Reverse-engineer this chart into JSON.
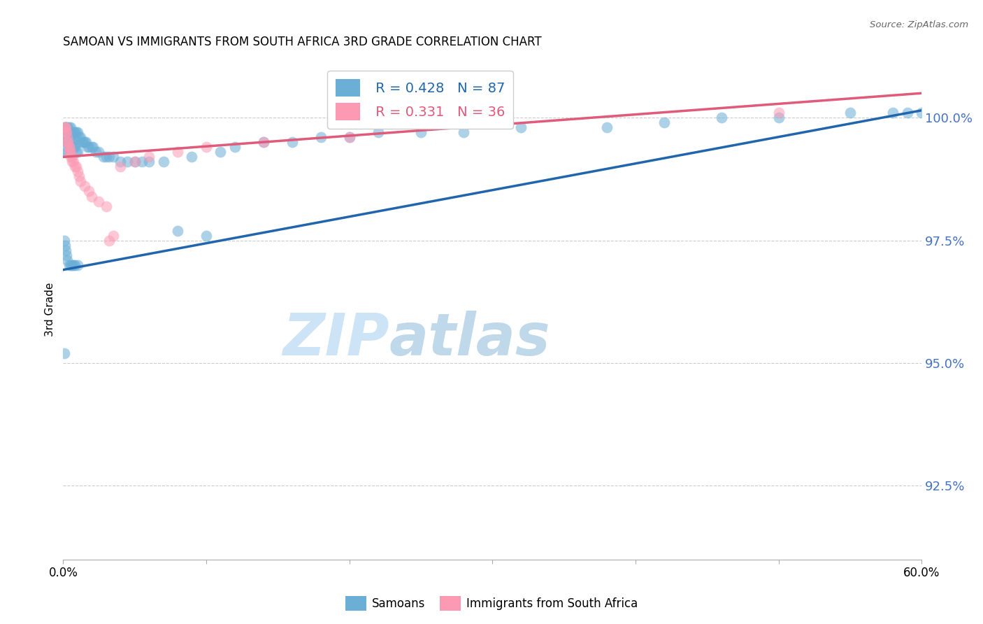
{
  "title": "SAMOAN VS IMMIGRANTS FROM SOUTH AFRICA 3RD GRADE CORRELATION CHART",
  "source": "Source: ZipAtlas.com",
  "ylabel": "3rd Grade",
  "yticks": [
    "92.5%",
    "95.0%",
    "97.5%",
    "100.0%"
  ],
  "ytick_vals": [
    92.5,
    95.0,
    97.5,
    100.0
  ],
  "xlim": [
    0.0,
    60.0
  ],
  "ylim": [
    91.0,
    101.2
  ],
  "legend_blue_r": "R = 0.428",
  "legend_blue_n": "N = 87",
  "legend_pink_r": "R = 0.331",
  "legend_pink_n": "N = 36",
  "blue_color": "#6baed6",
  "pink_color": "#fc9ab4",
  "blue_line_color": "#2166ac",
  "pink_line_color": "#e05a7a",
  "blue_scatter_x": [
    0.1,
    0.1,
    0.1,
    0.1,
    0.15,
    0.15,
    0.15,
    0.2,
    0.2,
    0.2,
    0.2,
    0.25,
    0.25,
    0.25,
    0.3,
    0.3,
    0.3,
    0.3,
    0.3,
    0.4,
    0.4,
    0.4,
    0.4,
    0.5,
    0.5,
    0.5,
    0.5,
    0.5,
    0.6,
    0.6,
    0.6,
    0.7,
    0.7,
    0.7,
    0.8,
    0.8,
    0.8,
    0.9,
    0.9,
    1.0,
    1.0,
    1.0,
    1.0,
    1.1,
    1.2,
    1.3,
    1.4,
    1.5,
    1.6,
    1.7,
    1.8,
    2.0,
    2.1,
    2.3,
    2.5,
    2.8,
    3.0,
    3.2,
    3.5,
    4.0,
    4.5,
    5.0,
    5.5,
    6.0,
    7.0,
    8.0,
    9.0,
    10.0,
    11.0,
    12.0,
    14.0,
    16.0,
    18.0,
    20.0,
    22.0,
    25.0,
    28.0,
    32.0,
    38.0,
    42.0,
    46.0,
    50.0,
    55.0,
    58.0,
    59.0,
    60.0,
    0.1
  ],
  "blue_scatter_y": [
    99.8,
    99.7,
    99.6,
    97.5,
    99.8,
    99.5,
    97.4,
    99.8,
    99.6,
    99.3,
    97.3,
    99.8,
    99.5,
    97.2,
    99.8,
    99.7,
    99.5,
    99.3,
    97.1,
    99.8,
    99.6,
    99.4,
    97.0,
    99.8,
    99.7,
    99.5,
    99.3,
    97.0,
    99.7,
    99.5,
    97.0,
    99.7,
    99.4,
    97.0,
    99.7,
    99.4,
    97.0,
    99.7,
    99.3,
    99.7,
    99.5,
    99.3,
    97.0,
    99.6,
    99.6,
    99.5,
    99.5,
    99.5,
    99.5,
    99.4,
    99.4,
    99.4,
    99.4,
    99.3,
    99.3,
    99.2,
    99.2,
    99.2,
    99.2,
    99.1,
    99.1,
    99.1,
    99.1,
    99.1,
    99.1,
    97.7,
    99.2,
    97.6,
    99.3,
    99.4,
    99.5,
    99.5,
    99.6,
    99.6,
    99.7,
    99.7,
    99.7,
    99.8,
    99.8,
    99.9,
    100.0,
    100.0,
    100.1,
    100.1,
    100.1,
    100.1,
    95.2
  ],
  "pink_scatter_x": [
    0.1,
    0.15,
    0.2,
    0.2,
    0.25,
    0.3,
    0.3,
    0.35,
    0.4,
    0.4,
    0.4,
    0.5,
    0.5,
    0.6,
    0.6,
    0.7,
    0.8,
    0.9,
    1.0,
    1.1,
    1.2,
    1.5,
    1.8,
    2.0,
    2.5,
    3.0,
    3.5,
    4.0,
    5.0,
    6.0,
    8.0,
    10.0,
    14.0,
    20.0,
    50.0,
    3.2
  ],
  "pink_scatter_y": [
    99.8,
    99.8,
    99.8,
    99.7,
    99.7,
    99.6,
    99.5,
    99.5,
    99.4,
    99.4,
    99.3,
    99.3,
    99.2,
    99.2,
    99.1,
    99.1,
    99.0,
    99.0,
    98.9,
    98.8,
    98.7,
    98.6,
    98.5,
    98.4,
    98.3,
    98.2,
    97.6,
    99.0,
    99.1,
    99.2,
    99.3,
    99.4,
    99.5,
    99.6,
    100.1,
    97.5
  ],
  "blue_trendline_x0": 0.0,
  "blue_trendline_x1": 60.0,
  "blue_trendline_y0": 96.9,
  "blue_trendline_y1": 100.15,
  "pink_trendline_x0": 0.0,
  "pink_trendline_x1": 60.0,
  "pink_trendline_y0": 99.2,
  "pink_trendline_y1": 100.5,
  "watermark_zip": "ZIP",
  "watermark_atlas": "atlas",
  "watermark_color": "#cce4f5",
  "bottom_legend_labels": [
    "Samoans",
    "Immigrants from South Africa"
  ]
}
